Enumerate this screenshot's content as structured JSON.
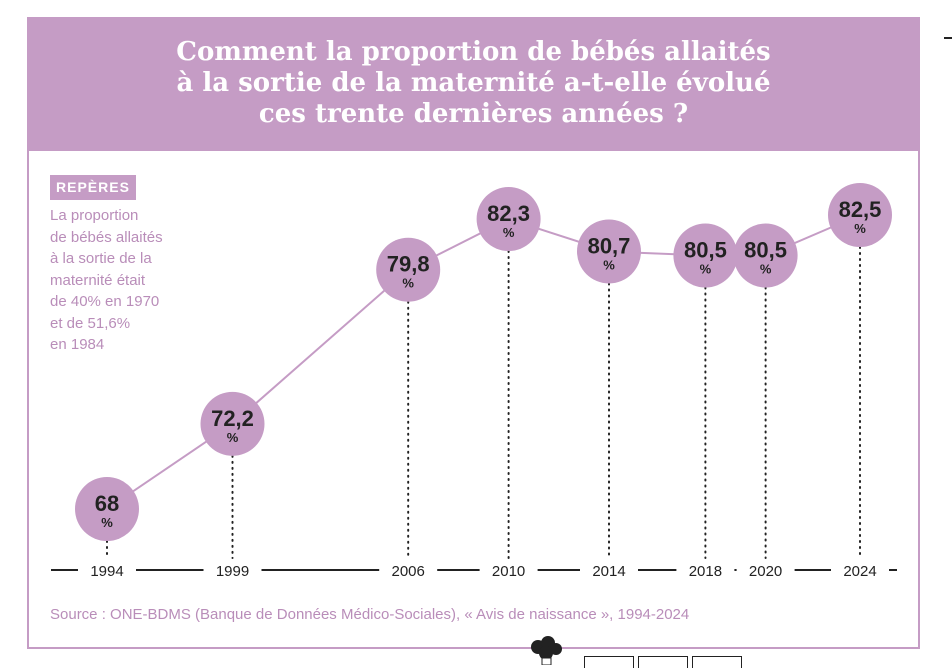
{
  "header": {
    "title_lines": [
      "Comment la proportion de bébés allaités",
      "à la sortie de la maternité a-t-elle évolué",
      "ces trente dernières années ?"
    ]
  },
  "sidebar": {
    "badge": "REPÈRES",
    "lines": [
      "La proportion",
      "de bébés allaités",
      "à la sortie de la",
      "maternité était",
      "de 40% en 1970",
      "et de 51,6%",
      "en 1984"
    ]
  },
  "footer": {
    "source": "Source : ONE-BDMS (Banque de Données Médico-Sociales), « Avis de naissance », 1994-2024"
  },
  "colors": {
    "accent": "#c59cc5",
    "accent_text": "#b98db9",
    "text_dark": "#222222"
  },
  "chart_data": {
    "type": "line",
    "unit": "%",
    "x": [
      1994,
      1999,
      2006,
      2010,
      2014,
      2018,
      2020,
      2024
    ],
    "x_labels": [
      "1994",
      "1999",
      "2006",
      "2010",
      "2014",
      "2018",
      "2020",
      "2024"
    ],
    "values": [
      68,
      72.2,
      79.8,
      82.3,
      80.7,
      80.5,
      80.5,
      82.5
    ],
    "value_labels": [
      "68",
      "72,2",
      "79,8",
      "82,3",
      "80,7",
      "80,5",
      "80,5",
      "82,5"
    ],
    "xlim": [
      1994,
      2024
    ],
    "ylim": [
      68,
      82.5
    ],
    "grid": false,
    "legend": "none"
  }
}
